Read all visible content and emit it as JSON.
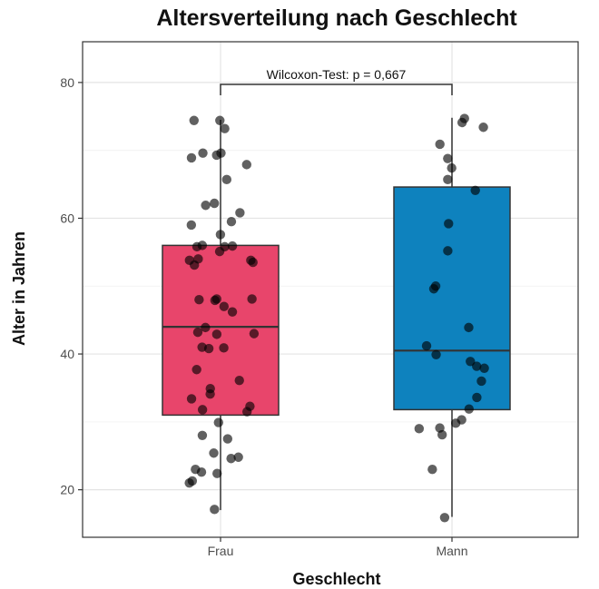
{
  "chart_data": {
    "type": "boxplot",
    "title": "Altersverteilung nach Geschlecht",
    "xlabel": "Geschlecht",
    "ylabel": "Alter in Jahren",
    "categories": [
      "Frau",
      "Mann"
    ],
    "ylim": [
      13,
      86
    ],
    "yticks": [
      20,
      40,
      60,
      80
    ],
    "grid": true,
    "annotation": "Wilcoxon-Test: p = 0,667",
    "boxes": [
      {
        "category": "Frau",
        "color": "#e8456b",
        "whisker_low": 17,
        "q1": 31,
        "median": 44,
        "q3": 56,
        "whisker_high": 74.5
      },
      {
        "category": "Mann",
        "color": "#0e82be",
        "whisker_low": 16,
        "q1": 31.8,
        "median": 40.5,
        "q3": 64.6,
        "whisker_high": 74.8
      }
    ],
    "points": [
      {
        "category": "Frau",
        "values": [
          74.4,
          73.2,
          74.4,
          69.6,
          69.3,
          69.6,
          68.9,
          67.9,
          65.7,
          62.2,
          61.9,
          60.8,
          59.5,
          59.0,
          57.6,
          56.0,
          55.9,
          55.8,
          55.8,
          55.1,
          54.0,
          53.8,
          53.8,
          53.5,
          53.1,
          48.1,
          48.1,
          48.0,
          47.9,
          47.0,
          46.2,
          43.9,
          43.2,
          43.0,
          42.9,
          41.0,
          40.9,
          40.8,
          37.7,
          36.1,
          34.9,
          34.1,
          33.4,
          32.3,
          31.8,
          31.5,
          29.9,
          28.0,
          27.5,
          25.4,
          24.8,
          24.6,
          23.0,
          22.6,
          22.4,
          21.3,
          21.0,
          17.1
        ]
      },
      {
        "category": "Mann",
        "values": [
          74.7,
          74.1,
          73.4,
          70.9,
          68.8,
          67.4,
          65.7,
          64.1,
          59.2,
          55.2,
          50.0,
          49.6,
          43.9,
          41.2,
          39.9,
          38.9,
          38.2,
          37.9,
          36.0,
          33.6,
          31.9,
          30.3,
          29.8,
          29.0,
          29.1,
          28.1,
          23.0,
          15.9
        ]
      }
    ]
  }
}
